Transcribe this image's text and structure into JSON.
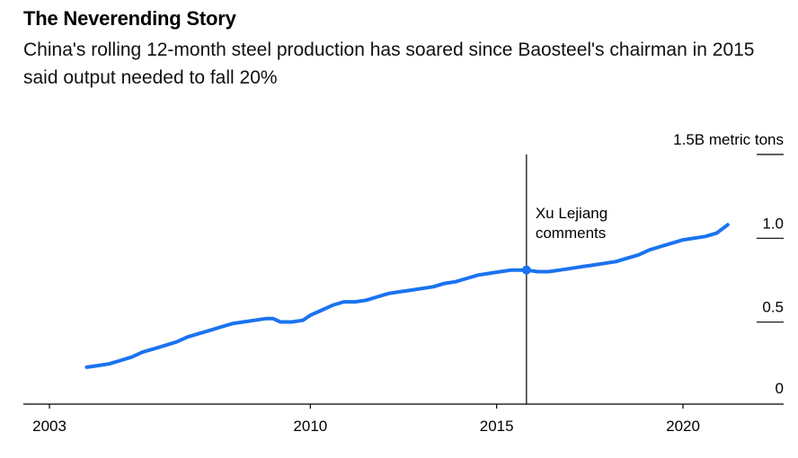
{
  "title": "The Neverending Story",
  "subtitle": "China's rolling 12-month steel production has soared since Baosteel's chairman in 2015 said output needed to fall 20%",
  "chart_data": {
    "type": "line",
    "title": "The Neverending Story",
    "subtitle": "China's rolling 12-month steel production has soared since Baosteel's chairman in 2015 said output needed to fall 20%",
    "xlabel": "",
    "ylabel": "",
    "unit": "B metric tons",
    "x_ticks": [
      2003,
      2010,
      2015,
      2020
    ],
    "y_ticks": [
      {
        "value": 0,
        "label": "0"
      },
      {
        "value": 0.5,
        "label": "0.5"
      },
      {
        "value": 1.0,
        "label": "1.0"
      },
      {
        "value": 1.5,
        "label": "1.5B metric tons"
      }
    ],
    "xlim": [
      2002.3,
      2022.7
    ],
    "ylim": [
      0,
      1.5
    ],
    "grid": false,
    "color": "#1a73f0",
    "annotation": {
      "text_lines": [
        "Xu Lejiang",
        "comments"
      ],
      "x": 2015.8,
      "y": 0.8
    },
    "series": [
      {
        "x": [
          2004.0,
          2004.3,
          2004.6,
          2004.9,
          2005.2,
          2005.5,
          2005.8,
          2006.1,
          2006.4,
          2006.7,
          2007.0,
          2007.3,
          2007.6,
          2007.9,
          2008.2,
          2008.5,
          2008.8,
          2009.0,
          2009.2,
          2009.5,
          2009.8,
          2010.0,
          2010.3,
          2010.6,
          2010.9,
          2011.2,
          2011.5,
          2011.8,
          2012.1,
          2012.4,
          2012.7,
          2013.0,
          2013.3,
          2013.6,
          2013.9,
          2014.2,
          2014.5,
          2014.8,
          2015.1,
          2015.4,
          2015.8,
          2016.1,
          2016.4,
          2016.7,
          2017.0,
          2017.3,
          2017.6,
          2017.9,
          2018.2,
          2018.5,
          2018.8,
          2019.1,
          2019.4,
          2019.7,
          2020.0,
          2020.3,
          2020.6,
          2020.9,
          2021.2
        ],
        "y": [
          0.22,
          0.23,
          0.24,
          0.26,
          0.28,
          0.31,
          0.33,
          0.35,
          0.37,
          0.4,
          0.42,
          0.44,
          0.46,
          0.48,
          0.49,
          0.5,
          0.51,
          0.51,
          0.49,
          0.49,
          0.5,
          0.53,
          0.56,
          0.59,
          0.61,
          0.61,
          0.62,
          0.64,
          0.66,
          0.67,
          0.68,
          0.69,
          0.7,
          0.72,
          0.73,
          0.75,
          0.77,
          0.78,
          0.79,
          0.8,
          0.8,
          0.79,
          0.79,
          0.8,
          0.81,
          0.82,
          0.83,
          0.84,
          0.85,
          0.87,
          0.89,
          0.92,
          0.94,
          0.96,
          0.98,
          0.99,
          1.0,
          1.02,
          1.07
        ]
      }
    ]
  }
}
